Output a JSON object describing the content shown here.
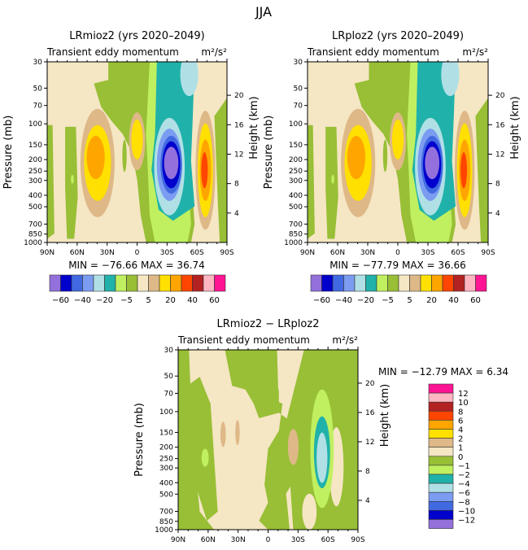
{
  "chart_data": {
    "figure_title": "JJA",
    "type": "heatmap",
    "plots": [
      {
        "id": "p1",
        "title": "LRmioz2 (yrs 2020–2049)",
        "subtitle": "Transient eddy momentum",
        "units": "m²/s²",
        "xticks": [
          "90N",
          "60N",
          "30N",
          "0",
          "30S",
          "60S",
          "90S"
        ],
        "yticks": [
          30,
          50,
          70,
          100,
          150,
          200,
          250,
          300,
          400,
          500,
          700,
          850,
          1000
        ],
        "ylabel": "Pressure (mb)",
        "y2label": "Height (km)",
        "y2ticks": [
          4,
          8,
          12,
          16,
          20
        ],
        "yscale": "log",
        "stats": "MIN = −76.66   MAX =  36.74"
      },
      {
        "id": "p2",
        "title": "LRploz2 (yrs 2020–2049)",
        "subtitle": "Transient eddy momentum",
        "units": "m²/s²",
        "xticks": [
          "90N",
          "60N",
          "30N",
          "0",
          "30S",
          "60S",
          "90S"
        ],
        "yticks": [
          30,
          50,
          70,
          100,
          150,
          200,
          250,
          300,
          400,
          500,
          700,
          850,
          1000
        ],
        "ylabel": "Pressure (mb)",
        "y2label": "Height (km)",
        "y2ticks": [
          4,
          8,
          12,
          16,
          20
        ],
        "yscale": "log",
        "stats": "MIN = −77.79   MAX =  36.66"
      },
      {
        "id": "p3",
        "title": "LRmioz2 − LRploz2",
        "subtitle": "Transient eddy momentum",
        "units": "m²/s²",
        "xticks": [
          "90N",
          "60N",
          "30N",
          "0",
          "30S",
          "60S",
          "90S"
        ],
        "yticks": [
          30,
          50,
          70,
          100,
          150,
          200,
          250,
          300,
          400,
          500,
          700,
          850,
          1000
        ],
        "ylabel": "Pressure (mb)",
        "y2label": "Height (km)",
        "y2ticks": [
          4,
          8,
          12,
          16,
          20
        ],
        "yscale": "log",
        "stats": "MIN = −12.79   MAX =    6.34"
      }
    ],
    "colorbar_top": {
      "orientation": "horizontal",
      "labels": [
        "−60",
        "−40",
        "−20",
        "−5",
        "5",
        "20",
        "40",
        "60"
      ]
    },
    "colorbar_diff": {
      "orientation": "vertical",
      "labels": [
        "12",
        "10",
        "8",
        "6",
        "4",
        "2",
        "1",
        "0",
        "−1",
        "−2",
        "−4",
        "−6",
        "−8",
        "−10",
        "−12"
      ]
    },
    "colors": [
      "#9370DB",
      "#0000CD",
      "#4169E1",
      "#7B9CF0",
      "#B0E0E6",
      "#20B2AA",
      "#C0F060",
      "#98BF35",
      "#F5E6C4",
      "#DEB887",
      "#FFE000",
      "#FFA500",
      "#FF4500",
      "#B22222",
      "#FFB6C1",
      "#FF1493"
    ]
  }
}
